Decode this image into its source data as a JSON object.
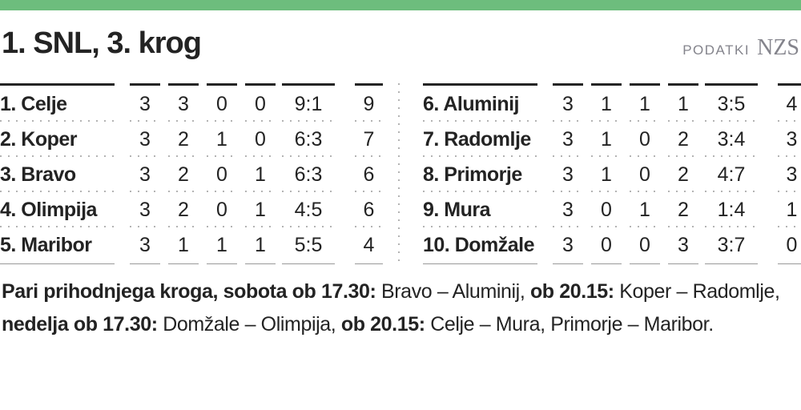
{
  "header": {
    "title": "1. SNL, 3. krog",
    "source_label": "PODATKI",
    "source_name": "NZS"
  },
  "tables": [
    {
      "rows": [
        [
          "1. Celje",
          "3",
          "3",
          "0",
          "0",
          "9:1",
          "9"
        ],
        [
          "2. Koper",
          "3",
          "2",
          "1",
          "0",
          "6:3",
          "7"
        ],
        [
          "3. Bravo",
          "3",
          "2",
          "0",
          "1",
          "6:3",
          "6"
        ],
        [
          "4. Olimpija",
          "3",
          "2",
          "0",
          "1",
          "4:5",
          "6"
        ],
        [
          "5. Maribor",
          "3",
          "1",
          "1",
          "1",
          "5:5",
          "4"
        ]
      ]
    },
    {
      "rows": [
        [
          "6. Aluminij",
          "3",
          "1",
          "1",
          "1",
          "3:5",
          "4"
        ],
        [
          "7. Radomlje",
          "3",
          "1",
          "0",
          "2",
          "3:4",
          "3"
        ],
        [
          "8. Primorje",
          "3",
          "1",
          "0",
          "2",
          "4:7",
          "3"
        ],
        [
          "9. Mura",
          "3",
          "0",
          "1",
          "2",
          "1:4",
          "1"
        ],
        [
          "10. Domžale",
          "3",
          "0",
          "0",
          "3",
          "3:7",
          "0"
        ]
      ]
    }
  ],
  "fixtures": {
    "segments": [
      {
        "text": "Pari prihodnjega kroga, sobota ob 17.30: ",
        "bold": true
      },
      {
        "text": "Bravo – Aluminij, ",
        "bold": false
      },
      {
        "text": "ob 20.15: ",
        "bold": true
      },
      {
        "text": "Koper – Radomlje, ",
        "bold": false
      },
      {
        "text": "nedelja ob 17.30: ",
        "bold": true
      },
      {
        "text": "Domžale – Olimpija, ",
        "bold": false
      },
      {
        "text": "ob 20.15: ",
        "bold": true
      },
      {
        "text": "Celje – Mura, Primorje – Maribor.",
        "bold": false
      }
    ]
  },
  "colors": {
    "accent_green": "#6dbd7d",
    "text": "#232323",
    "source_gray": "#84848c",
    "dot_gray": "#b3b3b3",
    "header_rule": "#242424",
    "footer_rule": "#9a9a9a"
  }
}
